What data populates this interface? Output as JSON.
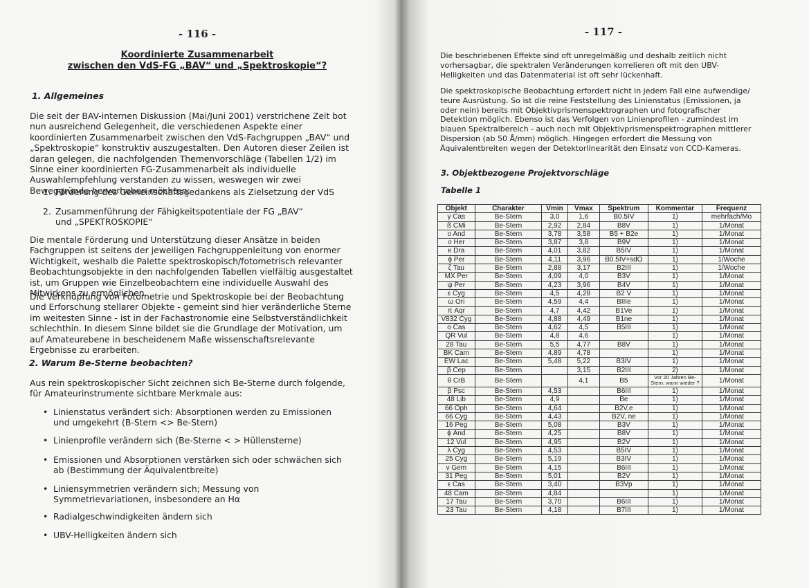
{
  "left_page": {
    "page_number": "- 116 -",
    "title_line_1": "Koordinierte Zusammenarbeit",
    "title_line_2": "zwischen den VdS-FG „BAV“ und „Spektroskopie“?",
    "heading_1": "1. Allgemeines",
    "paragraph_1": "Die seit der BAV-internen Diskussion (Mai/Juni 2001) verstrichene Zeit bot nun ausreichend Gelegenheit, die verschiedenen Aspekte einer koordinierten Zusammenarbeit zwischen den VdS-Fachgruppen „BAV“ und „Spektroskopie“ konstruktiv auszugestalten. Den Autoren dieser Zeilen ist daran gelegen, die nachfolgenden Themenvorschläge (Tabellen 1/2) im Sinne einer koordinierten FG-Zusammenarbeit als individuelle Auswahlempfehlung verstanden zu wissen, weswegen wir zwei Beweggründe hervorheben möchten:",
    "list": [
      {
        "number": "1.",
        "text": "Förderung des Gemeinschaftsgedankens als Zielsetzung der VdS"
      },
      {
        "number": "2.",
        "text": "Zusammenführung der Fähigkeitspotentiale der FG „BAV“ und „SPEKTROSKOPIE“"
      }
    ],
    "paragraph_2": "Die mentale Förderung und Unterstützung dieser Ansätze in beiden Fachgruppen ist seitens der jeweiligen Fachgruppenleitung von enormer Wichtigkeit, weshalb die Palette spektroskopisch/fotometrisch relevanter Beobachtungsobjekte in den nachfolgenden Tabellen vielfältig ausgestaltet ist, um Gruppen wie Einzelbeobachtern eine individuelle Auswahl des Mitwirkens zu ermöglichen.",
    "paragraph_3": "Die Verknüpfung von Fotometrie und Spektroskopie bei der Beobachtung und Erforschung stellarer Objekte - gemeint sind hier veränderliche Sterne im weitesten Sinne - ist in der Fachastronomie eine Selbstverständlichkeit schlechthin. In diesem Sinne bildet sie die Grundlage der Motivation, um auf Amateurebene in bescheidenem Maße wissenschaftsrelevante Ergebnisse zu erarbeiten.",
    "heading_2": "2. Warum Be-Sterne beobachten?",
    "paragraph_4": "Aus rein spektroskopischer Sicht zeichnen sich Be-Sterne durch folgende, für Amateurinstrumente sichtbare Merkmale aus:",
    "bullets": [
      "Linienstatus verändert sich: Absorptionen werden zu Emissionen und umgekehrt (B-Stern <> Be-Stern)",
      "Linienprofile verändern sich (Be-Sterne < > Hüllensterne)",
      "Emissionen und Absorptionen verstärken sich oder schwächen sich ab (Bestimmung der Äquivalentbreite)",
      "Liniensymmetrien verändern sich; Messung von Symmetrievariationen, insbesondere an Hα",
      "Radialgeschwindigkeiten ändern sich",
      "UBV-Helligkeiten ändern sich"
    ]
  },
  "right_page": {
    "page_number": "- 117 -",
    "paragraph_1": "Die beschriebenen Effekte sind oft unregelmäßig und deshalb zeitlich nicht vorhersagbar, die spektralen Veränderungen korrelieren oft mit den UBV-Helligkeiten und das Datenmaterial ist oft sehr lückenhaft.",
    "paragraph_2": "Die spektroskopische Beobachtung erfordert nicht in jedem Fall eine aufwendige/ teure Ausrüstung. So ist die reine Feststellung des Linienstatus (Emissionen, ja oder nein) bereits mit Objektivprismenspektrographen und fotografischer Detektion möglich. Ebenso ist das Verfolgen von Linienprofilen - zumindest im blauen Spektralbereich - auch noch mit Objektivprismenspektrographen mittlerer Dispersion (ab 50 Å/mm) möglich. Hingegen erfordert die Messung von Äquivalentbreiten wegen der Detektorlinearität den Einsatz von CCD-Kameras.",
    "heading_3": "3. Objektbezogene Projektvorschläge",
    "table_caption": "Tabelle 1",
    "table": {
      "columns": [
        "Objekt",
        "Charakter",
        "Vmin",
        "Vmax",
        "Spektrum",
        "Kommentar",
        "Frequenz"
      ],
      "rows": [
        [
          "γ Cas",
          "Be-Stern",
          "3,0",
          "1,6",
          "B0.5IV",
          "1)",
          "mehrfach/Mo"
        ],
        [
          "ß CMi",
          "Be-Stern",
          "2,92",
          "2,84",
          "B8V",
          "1)",
          "1/Monat"
        ],
        [
          "o And",
          "Be-Stern",
          "3,78",
          "3,58",
          "B5 + B2e",
          "1)",
          "1/Monat"
        ],
        [
          "o Her",
          "Be-Stern",
          "3,87",
          "3,8",
          "B9V",
          "1)",
          "1/Monat"
        ],
        [
          "κ Dra",
          "Be-Stern",
          "4,01",
          "3,82",
          "B5IV",
          "1)",
          "1/Monat"
        ],
        [
          "ϕ Per",
          "Be-Stern",
          "4,11",
          "3,96",
          "B0.5IV+sdO",
          "1)",
          "1/Woche"
        ],
        [
          "ζ Tau",
          "Be-Stern",
          "2,88",
          "3,17",
          "B2III",
          "1)",
          "1/Woche"
        ],
        [
          "MX Per",
          "Be-Stern",
          "4,09",
          "4,0",
          "B3V",
          "1)",
          "1/Monat"
        ],
        [
          "ψ Per",
          "Be-Stern",
          "4,23",
          "3,96",
          "B4V",
          "1)",
          "1/Monat"
        ],
        [
          "ε Cyg",
          "Be-Stern",
          "4,5",
          "4,28",
          "B2 V",
          "1)",
          "1/Monat"
        ],
        [
          "ω Ori",
          "Be-Stern",
          "4,59",
          "4,4",
          "BIIIe",
          "1)",
          "1/Monat"
        ],
        [
          "π Aqr",
          "Be-Stern",
          "4,7",
          "4,42",
          "B1Ve",
          "1)",
          "1/Monat"
        ],
        [
          "V832 Cyg",
          "Be-Stern",
          "4,88",
          "4,49",
          "B1ne",
          "1)",
          "1/Monat"
        ],
        [
          "o Cas",
          "Be-Stern",
          "4,62",
          "4,5",
          "B5III",
          "1)",
          "1/Monat"
        ],
        [
          "QR Vul",
          "Be-Stern",
          "4,8",
          "4,6",
          null,
          "1)",
          "1/Monat"
        ],
        [
          "28 Tau",
          "Be-Stern",
          "5,5",
          "4,77",
          "B8V",
          "1)",
          "1/Monat"
        ],
        [
          "BK Cam",
          "Be-Stern",
          "4,89",
          "4,78",
          null,
          "1)",
          "1/Monat"
        ],
        [
          "EW Lac",
          "Be-Stern",
          "5,48",
          "5,22",
          "B3IV",
          "1)",
          "1/Monat"
        ],
        [
          "β Cep",
          "Be-Stern",
          null,
          "3,15",
          "B2III",
          "2)",
          "1/Monat"
        ],
        [
          "θ CrB",
          "Be-Stern",
          null,
          "4,1",
          "B5",
          "Vor 20 Jahren Be-Stern; wann wieder ?",
          "1/Monat"
        ],
        [
          "β Psc",
          "Be-Stern",
          "4,53",
          null,
          "B6III",
          "1)",
          "1/Monat"
        ],
        [
          "48 Lib",
          "Be-Stern",
          "4,9",
          null,
          "Be",
          "1)",
          "1/Monat"
        ],
        [
          "66 Oph",
          "Be-Stern",
          "4,64",
          null,
          "B2V,e",
          "1)",
          "1/Monat"
        ],
        [
          "66 Cyg",
          "Be-Stern",
          "4,43",
          null,
          "B2V, ne",
          "1)",
          "1/Monat"
        ],
        [
          "16 Peg",
          "Be-Stern",
          "5,08",
          null,
          "B3V",
          "1)",
          "1/Monat"
        ],
        [
          "ϕ And",
          "Be-Stern",
          "4,25",
          null,
          "B8V",
          "1)",
          "1/Monat"
        ],
        [
          "12 Vul",
          "Be-Stern",
          "4,95",
          null,
          "B2V",
          "1)",
          "1/Monat"
        ],
        [
          "λ Cyg",
          "Be-Stern",
          "4,53",
          null,
          "B5IV",
          "1)",
          "1/Monat"
        ],
        [
          "25 Cyg",
          "Be-Stern",
          "5,19",
          null,
          "B3IV",
          "1)",
          "1/Monat"
        ],
        [
          "ν Gem",
          "Be-Stern",
          "4,15",
          null,
          "B6III",
          "1)",
          "1/Monat"
        ],
        [
          "31 Peg",
          "Be-Stern",
          "5,01",
          null,
          "B2V",
          "1)",
          "1/Monat"
        ],
        [
          "ε Cas",
          "Be-Stern",
          "3,40",
          null,
          "B3Vp",
          "1)",
          "1/Monat"
        ],
        [
          "48 Cam",
          "Be-Stern",
          "4,84",
          null,
          null,
          "1)",
          "1/Monat"
        ],
        [
          "17 Tau",
          "Be-Stern",
          "3,70",
          null,
          "B6III",
          "1)",
          "1/Monat"
        ],
        [
          "23 Tau",
          "Be-Stern",
          "4,18",
          null,
          "B7III",
          "1)",
          "1/Monat"
        ]
      ]
    }
  }
}
